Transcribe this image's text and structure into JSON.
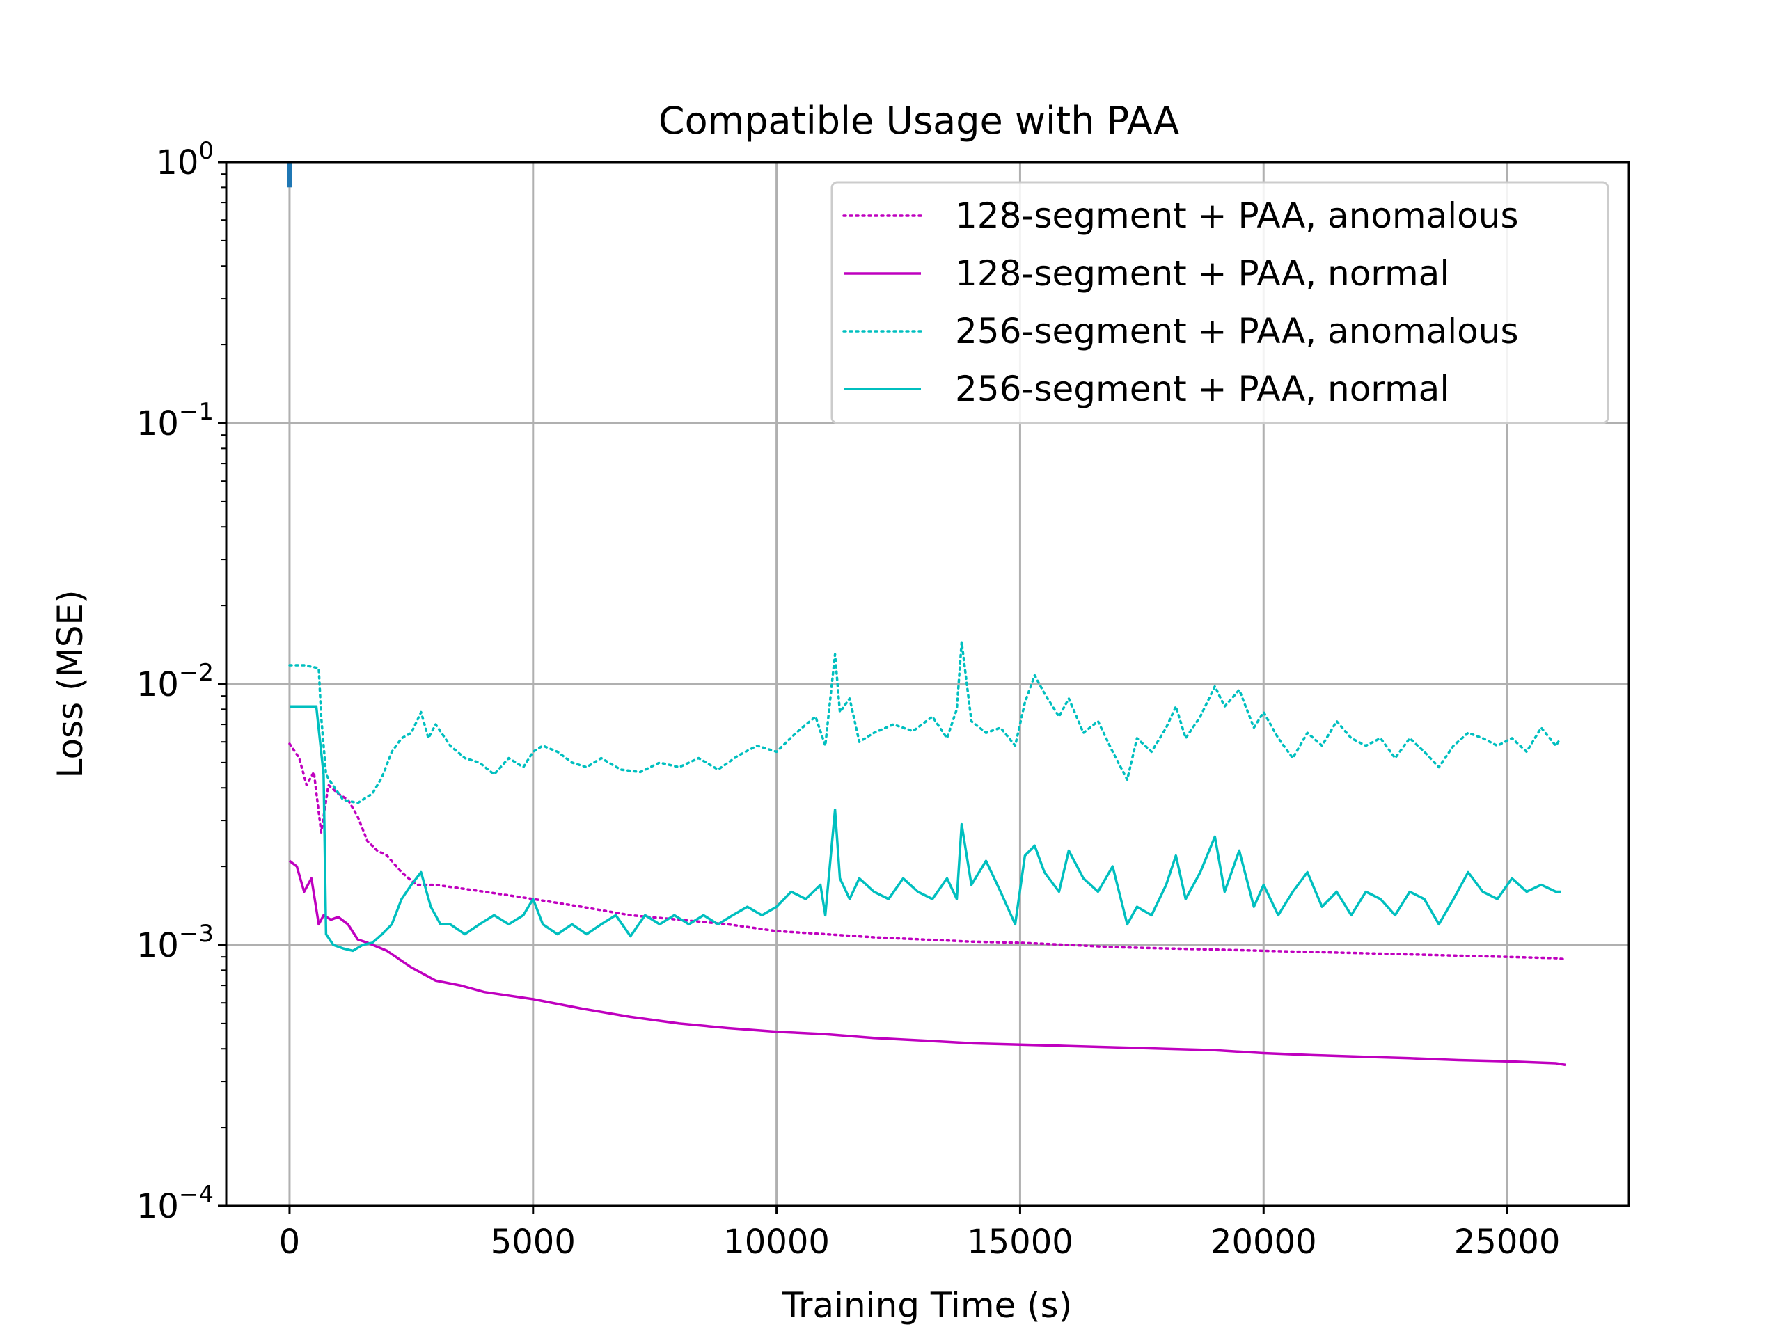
{
  "chart_data": {
    "type": "line",
    "title": "Compatible Usage with PAA",
    "xlabel": "Training Time (s)",
    "ylabel": "Loss (MSE)",
    "xlim": [
      -1300,
      27500
    ],
    "ylim": [
      0.0001,
      1
    ],
    "yscale": "log",
    "grid": true,
    "legend_position": "top-right",
    "xticks": [
      0,
      5000,
      10000,
      15000,
      20000,
      25000
    ],
    "xtick_labels": [
      "0",
      "5000",
      "10000",
      "15000",
      "20000",
      "25000"
    ],
    "yticks": [
      {
        "value": 1,
        "base": "10",
        "exp": "0"
      },
      {
        "value": 0.1,
        "base": "10",
        "exp": "−1"
      },
      {
        "value": 0.01,
        "base": "10",
        "exp": "−2"
      },
      {
        "value": 0.001,
        "base": "10",
        "exp": "−3"
      },
      {
        "value": 0.0001,
        "base": "10",
        "exp": "−4"
      }
    ],
    "series": [
      {
        "name": "128-segment + PAA, anomalous",
        "color": "#bf00bf",
        "style": "dotted",
        "x": [
          0,
          200,
          350,
          500,
          650,
          800,
          1000,
          1200,
          1400,
          1600,
          1800,
          2000,
          2300,
          2600,
          3000,
          4000,
          5000,
          6000,
          7000,
          8000,
          9000,
          10000,
          11000,
          12000,
          13000,
          14000,
          15000,
          16000,
          17000,
          18000,
          19000,
          20000,
          21000,
          22000,
          23000,
          24000,
          25000,
          26000,
          26200
        ],
        "y": [
          0.0059,
          0.0052,
          0.0041,
          0.0046,
          0.0027,
          0.0041,
          0.0038,
          0.0036,
          0.0031,
          0.0025,
          0.0023,
          0.0022,
          0.0019,
          0.0017,
          0.0017,
          0.0016,
          0.0015,
          0.0014,
          0.0013,
          0.00125,
          0.0012,
          0.00113,
          0.0011,
          0.00107,
          0.00105,
          0.00103,
          0.00102,
          0.001,
          0.00098,
          0.00097,
          0.00096,
          0.00095,
          0.00094,
          0.00093,
          0.00092,
          0.00091,
          0.0009,
          0.00089,
          0.00088
        ]
      },
      {
        "name": "128-segment + PAA, normal",
        "color": "#bf00bf",
        "style": "solid",
        "x": [
          0,
          150,
          300,
          450,
          600,
          700,
          850,
          1000,
          1200,
          1400,
          1600,
          2000,
          2500,
          3000,
          3500,
          4000,
          5000,
          6000,
          7000,
          8000,
          9000,
          10000,
          11000,
          12000,
          13000,
          14000,
          15000,
          16000,
          17000,
          18000,
          19000,
          20000,
          21000,
          22000,
          23000,
          24000,
          25000,
          26000,
          26200
        ],
        "y": [
          0.0021,
          0.002,
          0.0016,
          0.0018,
          0.0012,
          0.0013,
          0.00125,
          0.00128,
          0.0012,
          0.00105,
          0.00102,
          0.00095,
          0.00082,
          0.00073,
          0.0007,
          0.00066,
          0.00062,
          0.00057,
          0.00053,
          0.0005,
          0.00048,
          0.000465,
          0.000455,
          0.00044,
          0.00043,
          0.00042,
          0.000415,
          0.00041,
          0.000405,
          0.0004,
          0.000395,
          0.000385,
          0.000378,
          0.000373,
          0.000368,
          0.000362,
          0.000358,
          0.000352,
          0.000347
        ]
      },
      {
        "name": "256-segment + PAA, anomalous",
        "color": "#00bfbf",
        "style": "dotted",
        "x": [
          0,
          300,
          600,
          650,
          750,
          850,
          1100,
          1400,
          1700,
          1900,
          2100,
          2300,
          2500,
          2700,
          2850,
          3000,
          3300,
          3600,
          3900,
          4200,
          4500,
          4800,
          5000,
          5200,
          5500,
          5800,
          6100,
          6400,
          6800,
          7200,
          7600,
          8000,
          8400,
          8800,
          9200,
          9600,
          10000,
          10400,
          10800,
          11000,
          11200,
          11300,
          11500,
          11700,
          12000,
          12400,
          12800,
          13200,
          13500,
          13700,
          13800,
          14000,
          14300,
          14600,
          14900,
          15100,
          15300,
          15500,
          15800,
          16000,
          16300,
          16600,
          16900,
          17200,
          17400,
          17700,
          18000,
          18200,
          18400,
          18700,
          19000,
          19200,
          19500,
          19800,
          20000,
          20300,
          20600,
          20900,
          21200,
          21500,
          21800,
          22100,
          22400,
          22700,
          23000,
          23300,
          23600,
          23900,
          24200,
          24500,
          24800,
          25100,
          25400,
          25700,
          26000,
          26100
        ],
        "y": [
          0.0118,
          0.0118,
          0.0115,
          0.0075,
          0.0045,
          0.0042,
          0.0036,
          0.0035,
          0.0038,
          0.0044,
          0.0055,
          0.0062,
          0.0065,
          0.0078,
          0.0062,
          0.007,
          0.0058,
          0.0052,
          0.005,
          0.0045,
          0.0052,
          0.0048,
          0.0055,
          0.0058,
          0.0055,
          0.005,
          0.0048,
          0.0052,
          0.0047,
          0.0046,
          0.005,
          0.0048,
          0.0052,
          0.0047,
          0.0053,
          0.0058,
          0.0055,
          0.0065,
          0.0075,
          0.0058,
          0.013,
          0.0078,
          0.0088,
          0.006,
          0.0065,
          0.007,
          0.0066,
          0.0075,
          0.0062,
          0.008,
          0.0145,
          0.0072,
          0.0065,
          0.0068,
          0.0058,
          0.0085,
          0.0108,
          0.0092,
          0.0075,
          0.0088,
          0.0065,
          0.0072,
          0.0055,
          0.0043,
          0.0062,
          0.0055,
          0.0068,
          0.0082,
          0.0062,
          0.0075,
          0.0098,
          0.0082,
          0.0095,
          0.0068,
          0.0078,
          0.0062,
          0.0052,
          0.0065,
          0.0058,
          0.0072,
          0.0062,
          0.0058,
          0.0062,
          0.0052,
          0.0062,
          0.0055,
          0.0048,
          0.0058,
          0.0065,
          0.0062,
          0.0058,
          0.0062,
          0.0055,
          0.0068,
          0.0058,
          0.0062
        ]
      },
      {
        "name": "256-segment + PAA, normal",
        "color": "#00bfbf",
        "style": "solid",
        "x": [
          0,
          300,
          550,
          700,
          750,
          900,
          1100,
          1300,
          1500,
          1700,
          1900,
          2100,
          2300,
          2500,
          2700,
          2900,
          3100,
          3300,
          3600,
          3900,
          4200,
          4500,
          4800,
          5000,
          5200,
          5500,
          5800,
          6100,
          6400,
          6700,
          7000,
          7300,
          7600,
          7900,
          8200,
          8500,
          8800,
          9100,
          9400,
          9700,
          10000,
          10300,
          10600,
          10900,
          11000,
          11200,
          11300,
          11500,
          11700,
          12000,
          12300,
          12600,
          12900,
          13200,
          13500,
          13700,
          13800,
          14000,
          14300,
          14600,
          14900,
          15100,
          15300,
          15500,
          15800,
          16000,
          16300,
          16600,
          16900,
          17200,
          17400,
          17700,
          18000,
          18200,
          18400,
          18700,
          19000,
          19200,
          19500,
          19800,
          20000,
          20300,
          20600,
          20900,
          21200,
          21500,
          21800,
          22100,
          22400,
          22700,
          23000,
          23300,
          23600,
          23900,
          24200,
          24500,
          24800,
          25100,
          25400,
          25700,
          26000,
          26100
        ],
        "y": [
          0.0082,
          0.0082,
          0.0082,
          0.0045,
          0.0011,
          0.001,
          0.00097,
          0.00095,
          0.001,
          0.00102,
          0.0011,
          0.0012,
          0.0015,
          0.0017,
          0.0019,
          0.0014,
          0.0012,
          0.0012,
          0.0011,
          0.0012,
          0.0013,
          0.0012,
          0.0013,
          0.0015,
          0.0012,
          0.0011,
          0.0012,
          0.0011,
          0.0012,
          0.0013,
          0.00108,
          0.0013,
          0.0012,
          0.0013,
          0.0012,
          0.0013,
          0.0012,
          0.0013,
          0.0014,
          0.0013,
          0.0014,
          0.0016,
          0.0015,
          0.0017,
          0.0013,
          0.0033,
          0.0018,
          0.0015,
          0.0018,
          0.0016,
          0.0015,
          0.0018,
          0.0016,
          0.0015,
          0.0018,
          0.0015,
          0.0029,
          0.0017,
          0.0021,
          0.0016,
          0.0012,
          0.0022,
          0.0024,
          0.0019,
          0.0016,
          0.0023,
          0.0018,
          0.0016,
          0.002,
          0.0012,
          0.0014,
          0.0013,
          0.0017,
          0.0022,
          0.0015,
          0.0019,
          0.0026,
          0.0016,
          0.0023,
          0.0014,
          0.0017,
          0.0013,
          0.0016,
          0.0019,
          0.0014,
          0.0016,
          0.0013,
          0.0016,
          0.0015,
          0.0013,
          0.0016,
          0.0015,
          0.0012,
          0.0015,
          0.0019,
          0.0016,
          0.0015,
          0.0018,
          0.0016,
          0.0017,
          0.0016,
          0.0016
        ]
      },
      {
        "name": "",
        "color": "#1f77b4",
        "style": "solid",
        "x": [
          0,
          0
        ],
        "y": [
          0.8,
          1.0
        ]
      }
    ]
  }
}
